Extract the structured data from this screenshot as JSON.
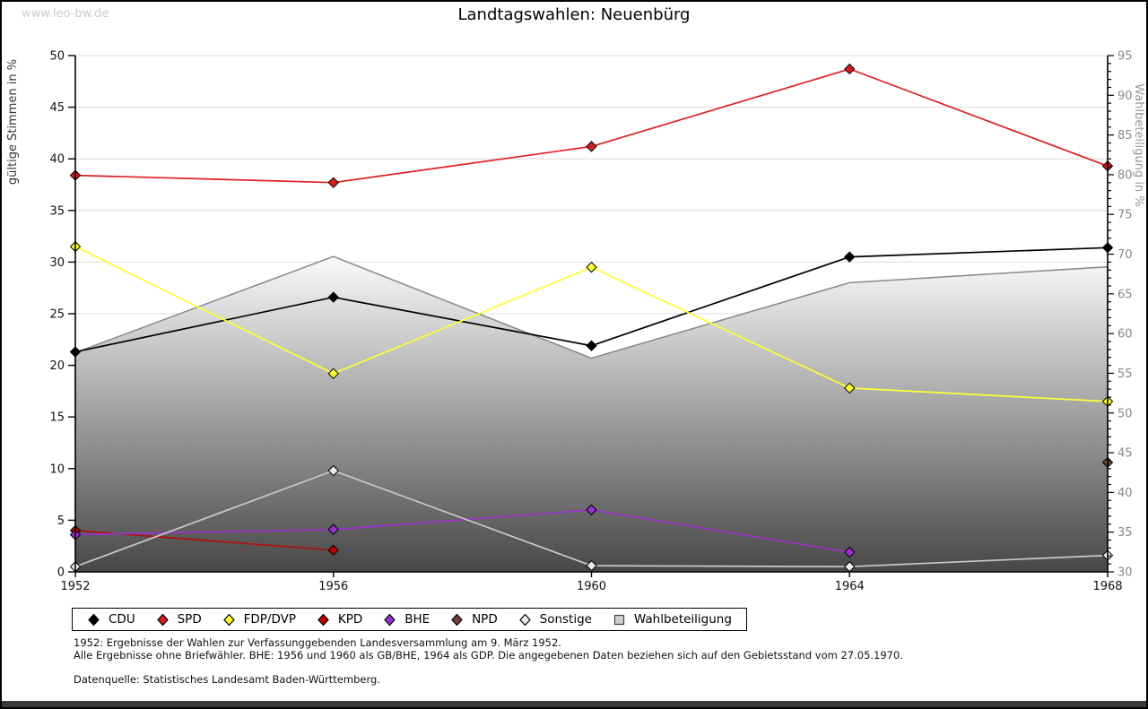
{
  "page": {
    "watermark": "www.leo-bw.de",
    "title": "Landtagswahlen: Neuenbürg"
  },
  "chart_data": {
    "type": "line",
    "title": "Landtagswahlen: Neuenbürg",
    "categories": [
      1952,
      1956,
      1960,
      1964,
      1968
    ],
    "left_axis": {
      "label": "gültige Stimmen in %",
      "min": 0,
      "max": 50,
      "tick_step": 5
    },
    "right_axis": {
      "label": "Wahlbeteiligung in %",
      "min": 30,
      "max": 95,
      "tick_step": 5,
      "minor_tick_step": 1
    },
    "grid": true,
    "legend_position": "bottom",
    "grid_color": "#dcdcdc",
    "area_gradient": {
      "top": "#fcfcfc",
      "bottom": "#454545",
      "edge": "#888888"
    },
    "series": [
      {
        "name": "CDU",
        "axis": "left",
        "kind": "line",
        "color": "#000000",
        "marker_fill": "#000000",
        "values": [
          21.3,
          26.6,
          21.9,
          30.5,
          31.4
        ]
      },
      {
        "name": "SPD",
        "axis": "left",
        "kind": "line",
        "color": "#e02020",
        "marker_fill": "#d81e1e",
        "values": [
          38.4,
          37.7,
          41.2,
          48.7,
          39.3
        ]
      },
      {
        "name": "FDP/DVP",
        "axis": "left",
        "kind": "line",
        "color": "#ffff33",
        "marker_fill": "#ffff33",
        "values": [
          31.5,
          19.2,
          29.5,
          17.8,
          16.5
        ]
      },
      {
        "name": "KPD",
        "axis": "left",
        "kind": "line",
        "color": "#b01010",
        "marker_fill": "#c00000",
        "values": [
          4.0,
          2.1,
          null,
          null,
          null
        ]
      },
      {
        "name": "BHE",
        "axis": "left",
        "kind": "line",
        "color": "#9932cc",
        "marker_fill": "#9932cc",
        "values": [
          3.6,
          4.1,
          6.0,
          1.9,
          null
        ]
      },
      {
        "name": "NPD",
        "axis": "left",
        "kind": "line",
        "color": "#6e4238",
        "marker_fill": "#6e4238",
        "values": [
          null,
          null,
          null,
          null,
          10.6
        ]
      },
      {
        "name": "Sonstige",
        "axis": "left",
        "kind": "line",
        "color": "#c9c9c9",
        "marker_fill": "#ececec",
        "values": [
          0.5,
          9.8,
          0.6,
          0.5,
          1.6
        ]
      },
      {
        "name": "Wahlbeteiligung",
        "axis": "right",
        "kind": "area",
        "color": "#888888",
        "marker_fill": "#cfcfcf",
        "values": [
          57.6,
          69.7,
          56.9,
          66.4,
          68.4
        ]
      }
    ]
  },
  "footnotes": {
    "line1": "1952: Ergebnisse der Wahlen zur Verfassunggebenden Landesversammlung am 9. März 1952.",
    "line2": "Alle Ergebnisse ohne Briefwähler. BHE: 1956 und 1960 als GB/BHE, 1964 als GDP. Die angegebenen Daten beziehen sich auf den Gebietsstand vom 27.05.1970.",
    "source": "Datenquelle: Statistisches Landesamt Baden-Württemberg."
  }
}
